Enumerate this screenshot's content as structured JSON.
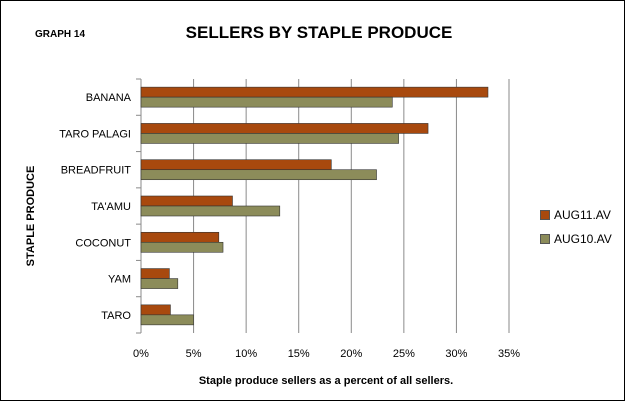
{
  "graph_label": "GRAPH 14",
  "chart_data": {
    "type": "bar",
    "orientation": "horizontal",
    "title": "SELLERS BY STAPLE PRODUCE",
    "xlabel": "Staple produce sellers as a percent of all sellers.",
    "ylabel": "STAPLE PRODUCE",
    "categories": [
      "BANANA",
      "TARO PALAGI",
      "BREADFRUIT",
      "TA'AMU",
      "COCONUT",
      "YAM",
      "TARO"
    ],
    "series": [
      {
        "name": "AUG11.AV",
        "color": "#A8490E",
        "values": [
          33.0,
          27.3,
          18.1,
          8.7,
          7.4,
          2.7,
          2.8
        ]
      },
      {
        "name": "AUG10.AV",
        "color": "#8C8C5A",
        "values": [
          23.9,
          24.5,
          22.4,
          13.2,
          7.8,
          3.5,
          5.0
        ]
      }
    ],
    "xlim": [
      0,
      35
    ],
    "xticks": [
      "0%",
      "5%",
      "10%",
      "15%",
      "20%",
      "25%",
      "30%",
      "35%"
    ],
    "grid": true,
    "legend_position": "right"
  }
}
